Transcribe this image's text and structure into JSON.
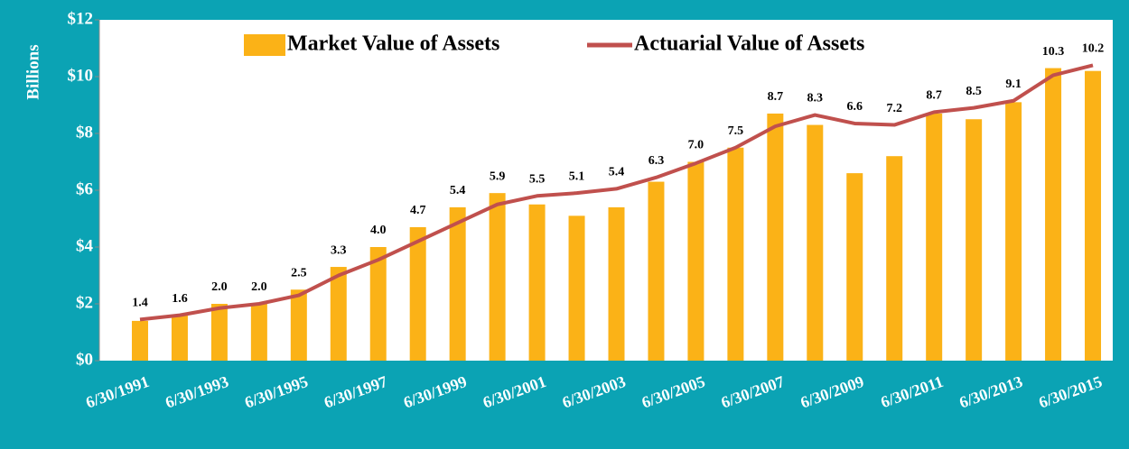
{
  "chart_data": {
    "type": "bar+line",
    "y_label": "Billions",
    "categories": [
      "6/30/1991",
      null,
      "6/30/1993",
      null,
      "6/30/1995",
      null,
      "6/30/1997",
      null,
      "6/30/1999",
      null,
      "6/30/2001",
      null,
      "6/30/2003",
      null,
      "6/30/2005",
      null,
      "6/30/2007",
      null,
      "6/30/2009",
      null,
      "6/30/2011",
      null,
      "6/30/2013",
      null,
      "6/30/2015"
    ],
    "series": [
      {
        "name": "Market Value of Assets",
        "type": "bar",
        "color": "#fbb217",
        "values": [
          1.4,
          1.6,
          2.0,
          2.0,
          2.5,
          3.3,
          4.0,
          4.7,
          5.4,
          5.9,
          5.5,
          5.1,
          5.4,
          6.3,
          7.0,
          7.5,
          8.7,
          8.3,
          6.6,
          7.2,
          8.7,
          8.5,
          9.1,
          10.3,
          10.2
        ],
        "value_labels": [
          "1.4",
          "1.6",
          "2.0",
          "2.0",
          "2.5",
          "3.3",
          "4.0",
          "4.7",
          "5.4",
          "5.9",
          "5.5",
          "5.1",
          "5.4",
          "6.3",
          "7.0",
          "7.5",
          "8.7",
          "8.3",
          "6.6",
          "7.2",
          "8.7",
          "8.5",
          "9.1",
          "10.3",
          "10.2"
        ]
      },
      {
        "name": "Actuarial Value of Assets",
        "type": "line",
        "color": "#c0504d",
        "values": [
          1.45,
          1.6,
          1.85,
          2.0,
          2.3,
          3.0,
          3.55,
          4.2,
          4.85,
          5.5,
          5.8,
          5.9,
          6.05,
          6.45,
          6.95,
          7.5,
          8.25,
          8.65,
          8.35,
          8.3,
          8.75,
          8.9,
          9.15,
          10.05,
          10.4
        ]
      }
    ],
    "ylim": [
      0,
      12
    ],
    "yticks": [
      {
        "value": 0,
        "label": "$0"
      },
      {
        "value": 2,
        "label": "$2"
      },
      {
        "value": 4,
        "label": "$4"
      },
      {
        "value": 6,
        "label": "$6"
      },
      {
        "value": 8,
        "label": "$8"
      },
      {
        "value": 10,
        "label": "$10"
      },
      {
        "value": 12,
        "label": "$12"
      }
    ],
    "grid": false,
    "legend": "top"
  }
}
